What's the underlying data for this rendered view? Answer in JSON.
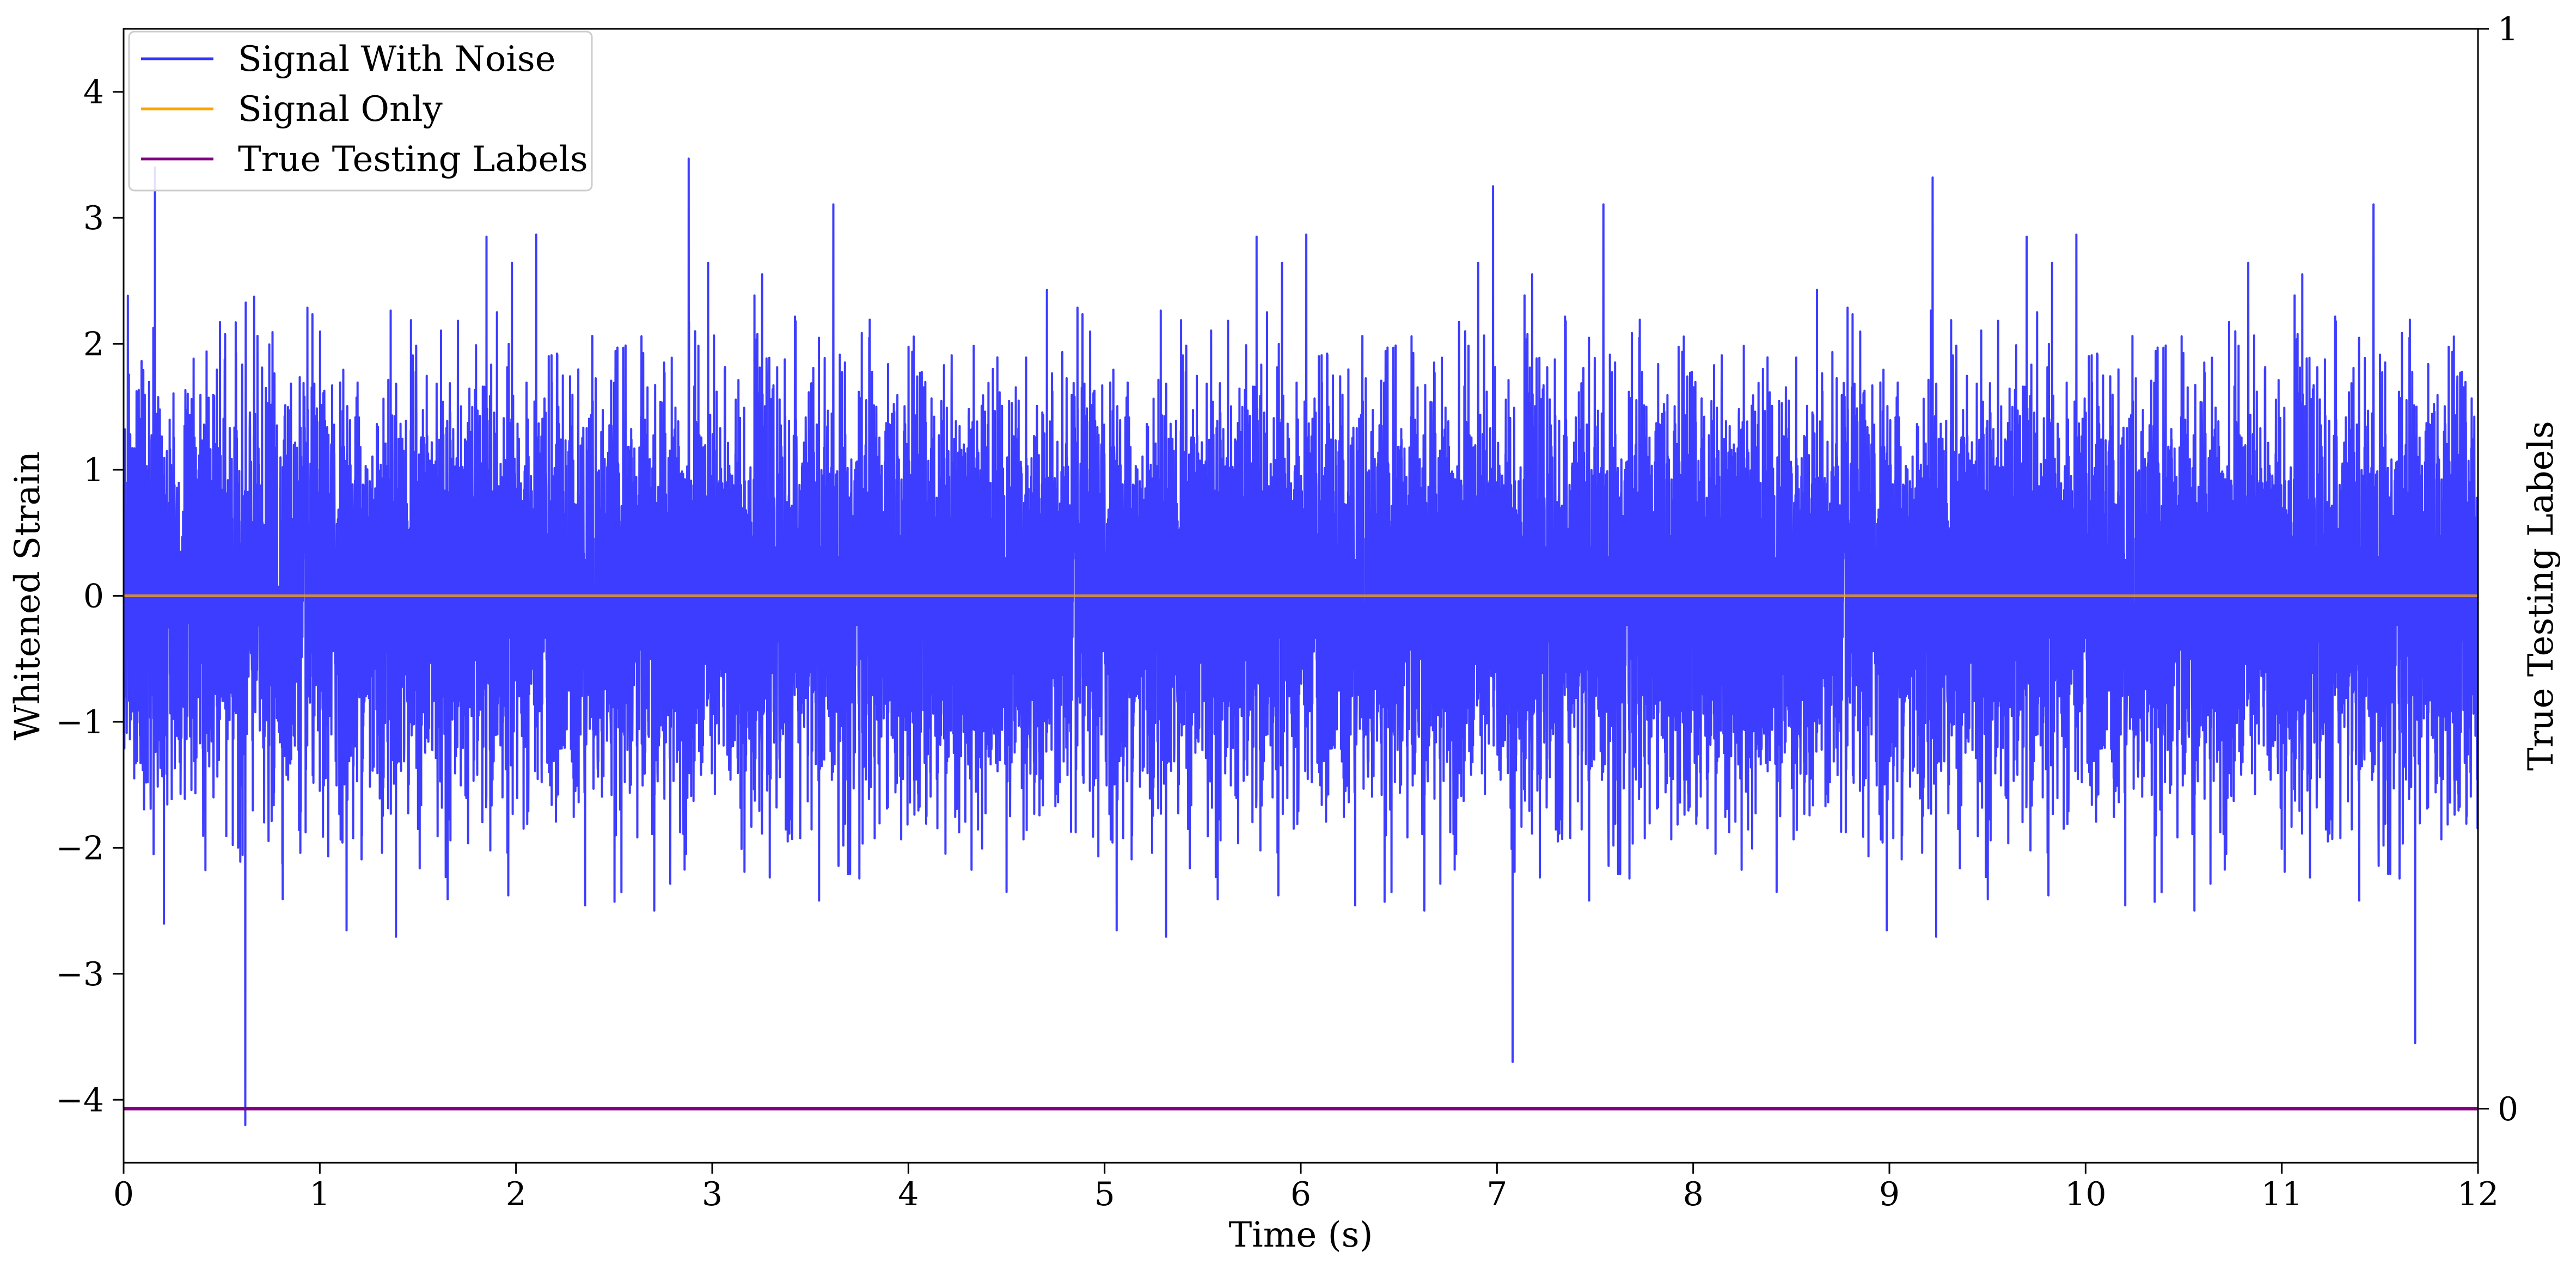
{
  "chart_data": {
    "type": "line",
    "xlabel": "Time (s)",
    "ylabel": "Whitened Strain",
    "y2label": "True Testing Labels",
    "xlim": [
      0,
      12
    ],
    "ylim": [
      -4.5,
      4.5
    ],
    "y2lim": [
      -0.05,
      1
    ],
    "xticks": [
      0,
      1,
      2,
      3,
      4,
      5,
      6,
      7,
      8,
      9,
      10,
      11,
      12
    ],
    "yticks": [
      -4,
      -3,
      -2,
      -1,
      0,
      1,
      2,
      3,
      4
    ],
    "y2ticks": [
      0,
      1
    ],
    "xtick_labels": [
      "0",
      "1",
      "2",
      "3",
      "4",
      "5",
      "6",
      "7",
      "8",
      "9",
      "10",
      "11",
      "12"
    ],
    "ytick_labels": [
      "−4",
      "−3",
      "−2",
      "−1",
      "0",
      "1",
      "2",
      "3",
      "4"
    ],
    "y2tick_labels": [
      "0",
      "1"
    ],
    "legend_position": "top-left",
    "grid": false,
    "series": [
      {
        "name": "Signal With Noise",
        "color": "#3333ff",
        "axis": "left",
        "description_kind": "noise",
        "sample_rate_hz": 4096,
        "x_range": [
          0,
          12
        ],
        "approx_std": 0.8,
        "notable_peaks": [
          {
            "x": 0.16,
            "y": 3.4
          },
          {
            "x": 0.62,
            "y": -4.2
          },
          {
            "x": 2.88,
            "y": 3.47
          },
          {
            "x": 6.98,
            "y": 3.25
          },
          {
            "x": 7.08,
            "y": -3.7
          },
          {
            "x": 9.22,
            "y": 3.32
          },
          {
            "x": 11.68,
            "y": -3.55
          }
        ]
      },
      {
        "name": "Signal Only",
        "color": "#ffa500",
        "axis": "left",
        "x": [
          0,
          12
        ],
        "y": [
          0,
          0
        ]
      },
      {
        "name": "True Testing Labels",
        "color": "#800080",
        "axis": "right",
        "x": [
          0,
          12
        ],
        "y": [
          0,
          0
        ]
      }
    ]
  }
}
